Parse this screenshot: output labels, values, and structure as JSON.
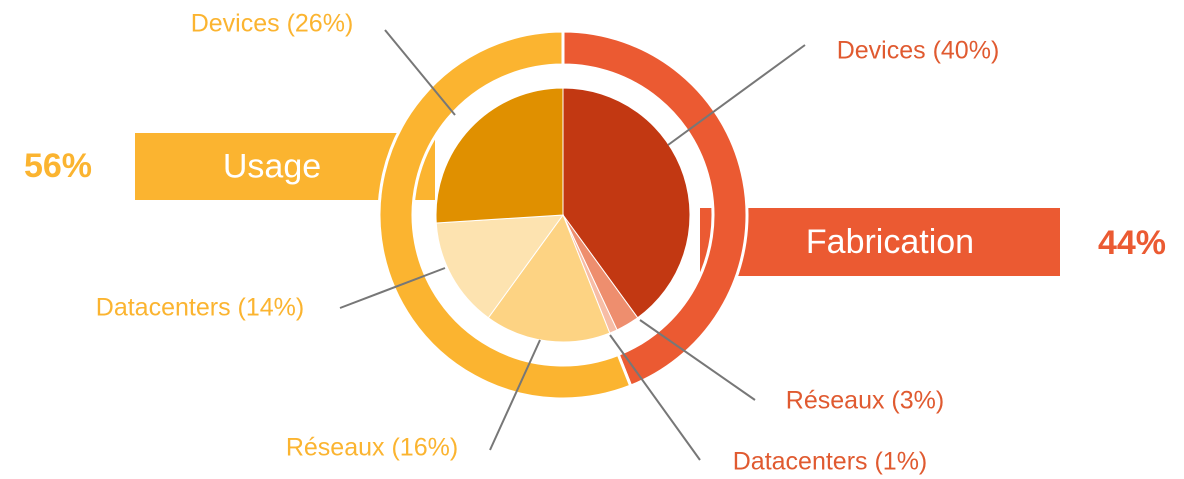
{
  "chart_data": {
    "type": "pie",
    "outer": {
      "categories": [
        "Fabrication",
        "Usage"
      ],
      "values": [
        44,
        56
      ],
      "value_labels": [
        "44%",
        "56%"
      ],
      "colors": [
        "#eb5a32",
        "#fbb430"
      ]
    },
    "inner": {
      "values": [
        40,
        3,
        1,
        16,
        14,
        26
      ],
      "value_labels": [
        "Devices (40%)",
        "Réseaux (3%)",
        "Datacenters (1%)",
        "Réseaux (16%)",
        "Datacenters (14%)",
        "Devices (26%)"
      ],
      "colors": [
        "#c23812",
        "#ee8e6e",
        "#f7bda6",
        "#fdd383",
        "#fde3b0",
        "#e09000"
      ]
    }
  }
}
